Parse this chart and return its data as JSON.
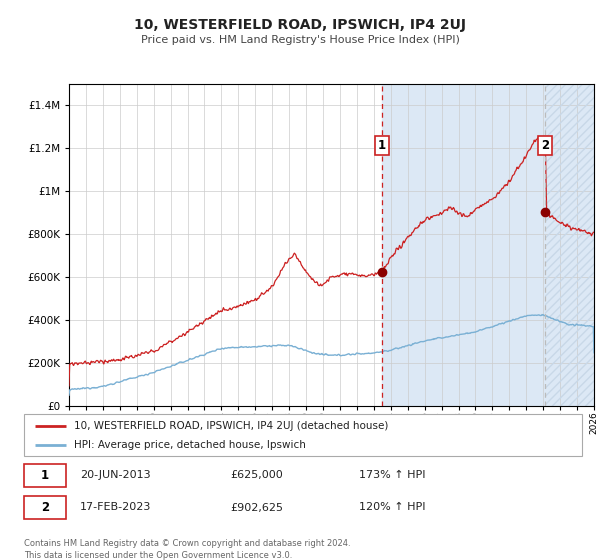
{
  "title": "10, WESTERFIELD ROAD, IPSWICH, IP4 2UJ",
  "subtitle": "Price paid vs. HM Land Registry's House Price Index (HPI)",
  "legend_line1": "10, WESTERFIELD ROAD, IPSWICH, IP4 2UJ (detached house)",
  "legend_line2": "HPI: Average price, detached house, Ipswich",
  "transaction1_date": "20-JUN-2013",
  "transaction1_price": 625000,
  "transaction1_hpi": "173%",
  "transaction2_date": "17-FEB-2023",
  "transaction2_price": 902625,
  "transaction2_hpi": "120%",
  "footer": "Contains HM Land Registry data © Crown copyright and database right 2024.\nThis data is licensed under the Open Government Licence v3.0.",
  "red_line_color": "#cc2222",
  "blue_line_color": "#7ab0d4",
  "shaded_region_color": "#dce8f5",
  "dot_color": "#8b0000",
  "dashed_line_color": "#cc2222",
  "dashed_line2_color": "#aaaaaa",
  "grid_color": "#cccccc",
  "background_color": "#ffffff",
  "ylim": [
    0,
    1500000
  ],
  "xstart_year": 1995,
  "xend_year": 2026,
  "transaction1_year": 2013.47,
  "transaction2_year": 2023.13
}
